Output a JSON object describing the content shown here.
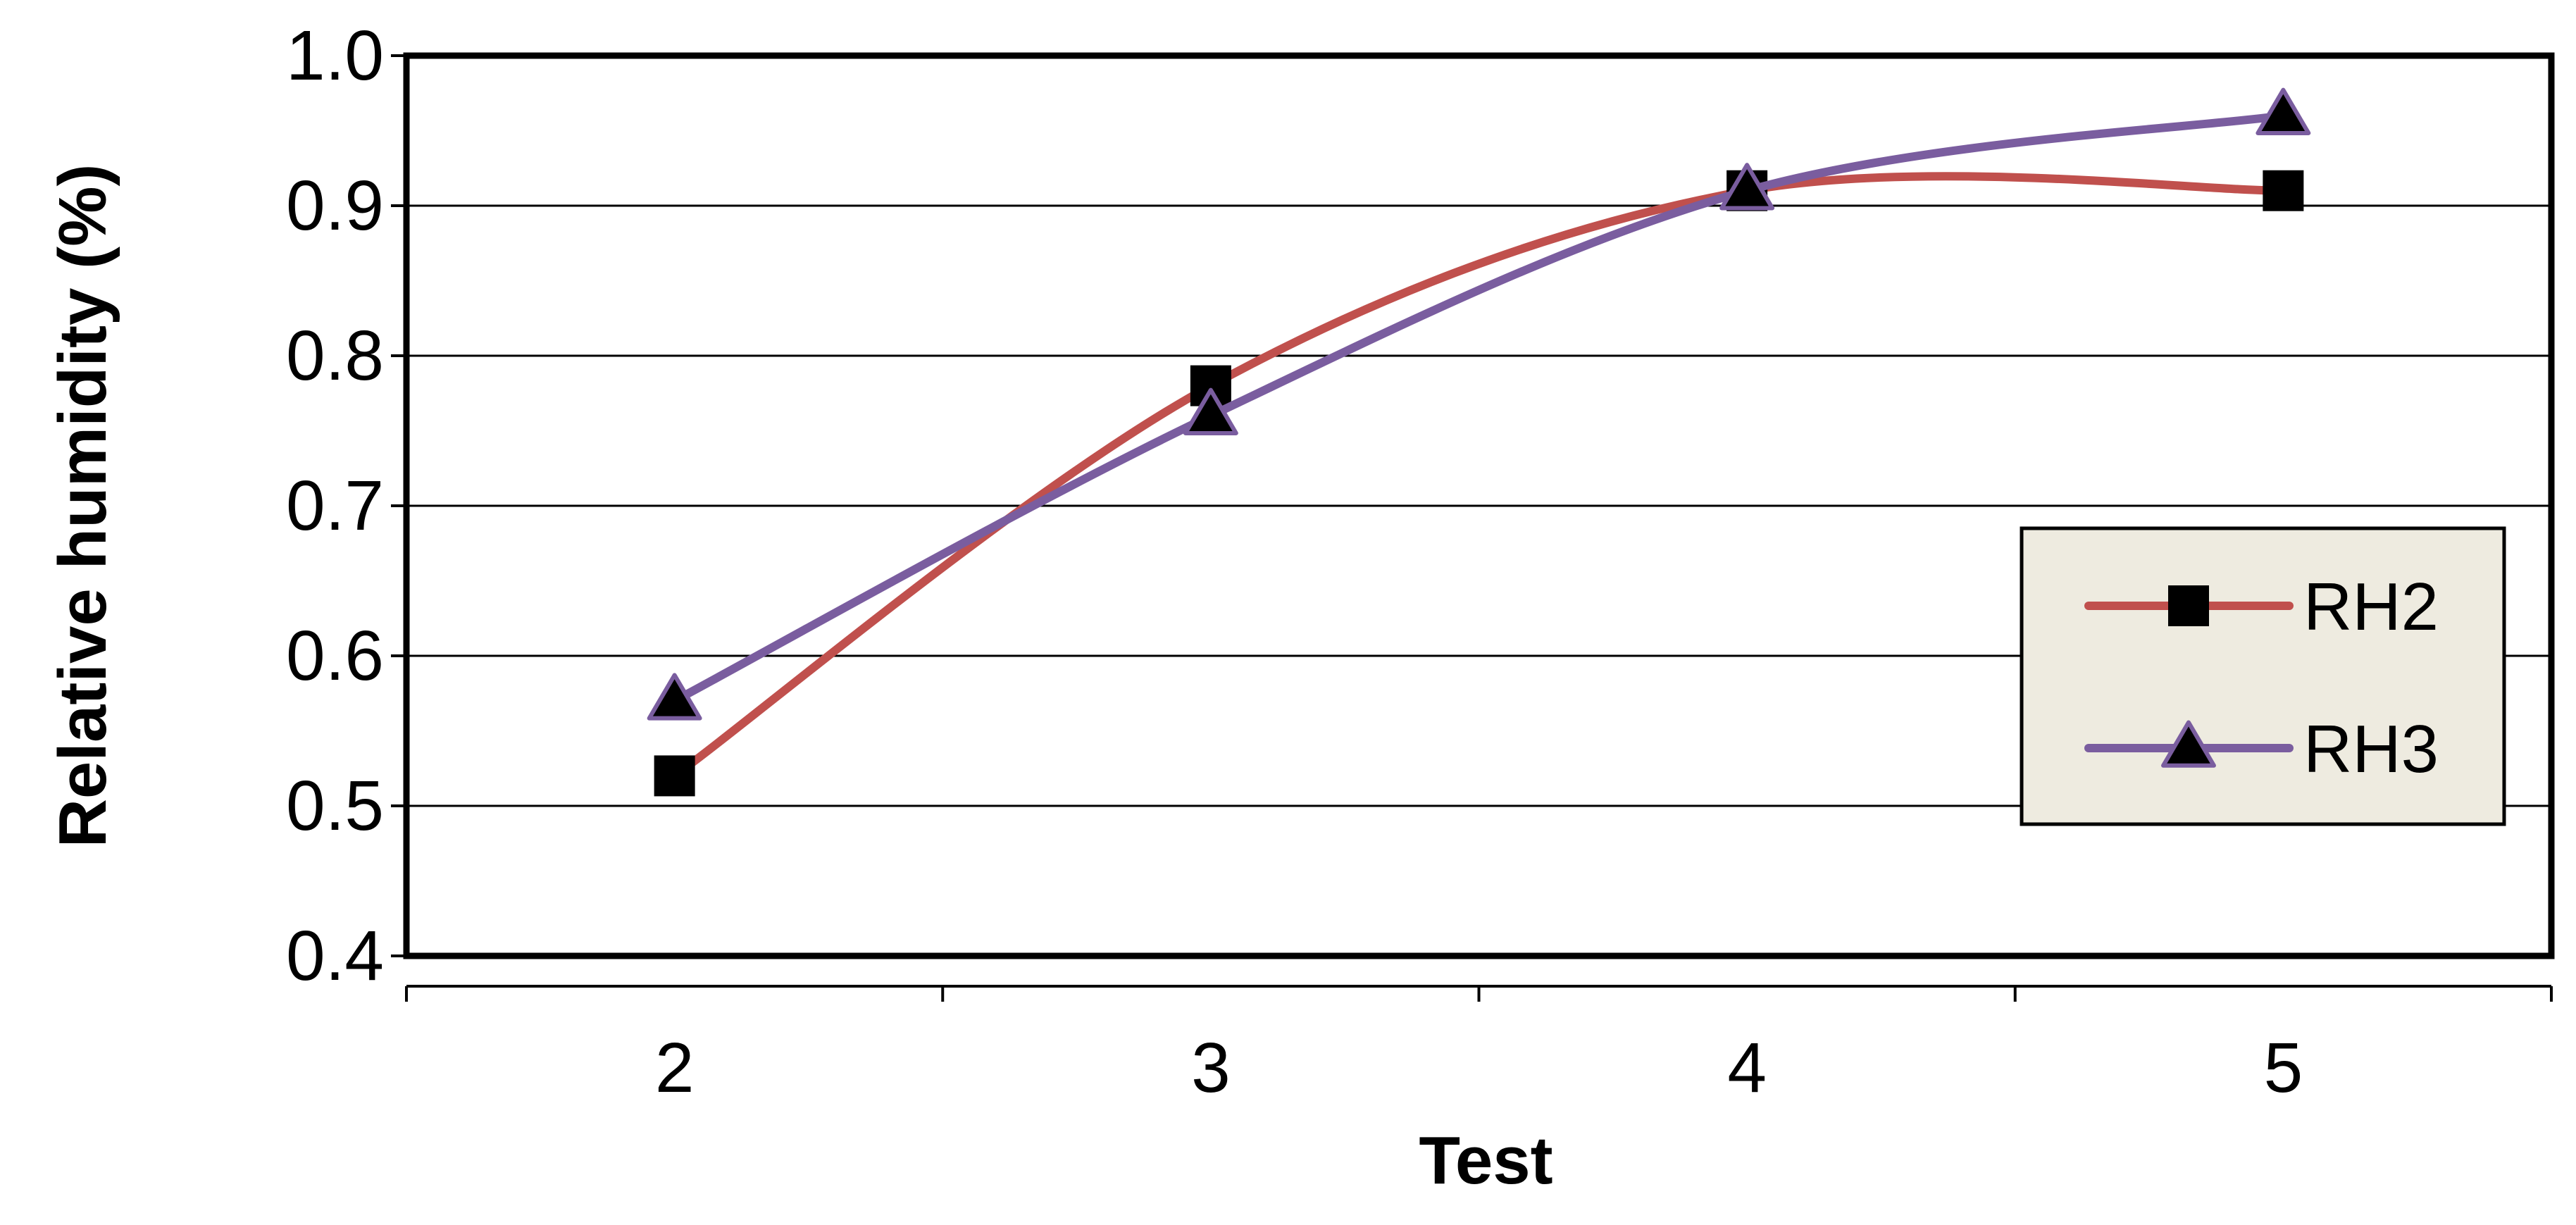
{
  "chart_data": {
    "type": "line",
    "title": "",
    "xlabel": "Test",
    "ylabel": "Relative humidity (%)",
    "categories": [
      "2",
      "3",
      "4",
      "5"
    ],
    "ylim": [
      0.4,
      1.0
    ],
    "yticks": [
      "0.4",
      "0.5",
      "0.6",
      "0.7",
      "0.8",
      "0.9",
      "1.0"
    ],
    "grid": true,
    "smoothed": true,
    "legend_position": "right",
    "series": [
      {
        "name": "RH2",
        "values": [
          0.52,
          0.78,
          0.91,
          0.91
        ],
        "color": "#c0504d",
        "marker": "square",
        "marker_color": "#000000"
      },
      {
        "name": "RH3",
        "values": [
          0.57,
          0.76,
          0.91,
          0.96
        ],
        "color": "#7a5d9f",
        "marker": "triangle",
        "marker_color": "#000000"
      }
    ]
  }
}
